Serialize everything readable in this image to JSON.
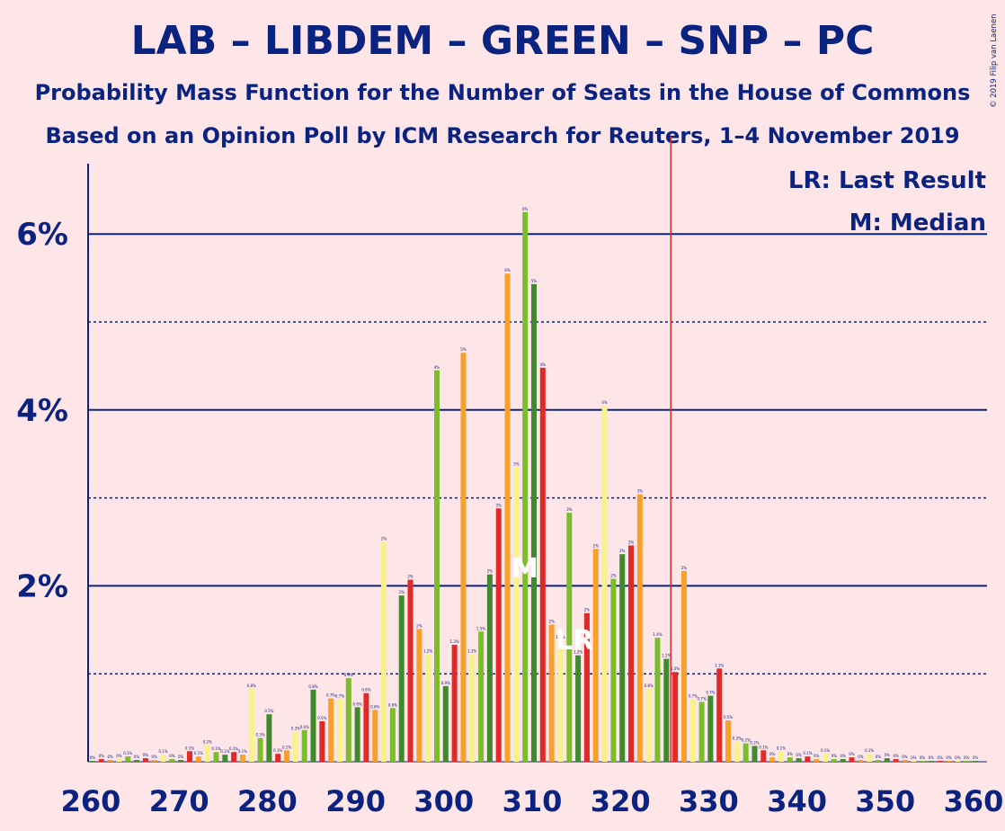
{
  "title": "LAB – LIBDEM – GREEN – SNP – PC",
  "subtitle1": "Probability Mass Function for the Number of Seats in the House of Commons",
  "subtitle2": "Based on an Opinion Poll by ICM Research for Reuters, 1–4 November 2019",
  "copyright": "© 2019 Filip van Laenen",
  "legend": {
    "last_result": "LR: Last Result",
    "median": "M: Median"
  },
  "markers": {
    "median_label": "M",
    "last_result_label": "LR"
  },
  "colors": {
    "background": "#fee5e8",
    "text": "#0b2380",
    "palette": [
      "#3f8a2e",
      "#e02a2a",
      "#f8a02c",
      "#f8f28c",
      "#7cbd2d"
    ],
    "majority_line": "#e02a2a"
  },
  "chart_data": {
    "type": "bar",
    "xlabel": "",
    "ylabel": "",
    "xlim": [
      260,
      360
    ],
    "ylim": [
      0,
      6.8
    ],
    "x_ticks": [
      260,
      270,
      280,
      290,
      300,
      310,
      320,
      330,
      340,
      350,
      360
    ],
    "y_ticks": [
      {
        "value": 2,
        "label": "2%"
      },
      {
        "value": 4,
        "label": "4%"
      },
      {
        "value": 6,
        "label": "6%"
      }
    ],
    "minor_gridlines": [
      1,
      3,
      5
    ],
    "majority_line_x": 326,
    "median_x": 310,
    "last_result_x": 315,
    "x": [
      260,
      261,
      262,
      263,
      264,
      265,
      266,
      267,
      268,
      269,
      270,
      271,
      272,
      273,
      274,
      275,
      276,
      277,
      278,
      279,
      280,
      281,
      282,
      283,
      284,
      285,
      286,
      287,
      288,
      289,
      290,
      291,
      292,
      293,
      294,
      295,
      296,
      297,
      298,
      299,
      300,
      301,
      302,
      303,
      304,
      305,
      306,
      307,
      308,
      309,
      310,
      311,
      312,
      313,
      314,
      315,
      316,
      317,
      318,
      319,
      320,
      321,
      322,
      323,
      324,
      325,
      326,
      327,
      328,
      329,
      330,
      331,
      332,
      333,
      334,
      335,
      336,
      337,
      338,
      339,
      340,
      341,
      342,
      343,
      344,
      345,
      346,
      347,
      348,
      349,
      350,
      351,
      352,
      353,
      354,
      355,
      356,
      357,
      358,
      359,
      360
    ],
    "values": [
      0.01,
      0.03,
      0.02,
      0.03,
      0.06,
      0.02,
      0.04,
      0.02,
      0.08,
      0.03,
      0.02,
      0.12,
      0.06,
      0.19,
      0.11,
      0.08,
      0.11,
      0.08,
      0.83,
      0.27,
      0.54,
      0.09,
      0.13,
      0.34,
      0.36,
      0.82,
      0.46,
      0.72,
      0.71,
      0.95,
      0.62,
      0.78,
      0.59,
      2.5,
      0.61,
      1.89,
      2.07,
      1.51,
      1.22,
      4.45,
      0.86,
      1.33,
      4.65,
      1.22,
      1.48,
      2.13,
      2.88,
      5.55,
      3.35,
      6.25,
      5.43,
      4.48,
      1.56,
      1.38,
      2.83,
      1.21,
      1.69,
      2.42,
      4.05,
      2.08,
      2.36,
      2.46,
      3.04,
      0.83,
      1.41,
      1.17,
      1.02,
      2.17,
      0.71,
      0.68,
      0.75,
      1.06,
      0.47,
      0.23,
      0.21,
      0.18,
      0.13,
      0.05,
      0.12,
      0.05,
      0.04,
      0.06,
      0.03,
      0.09,
      0.03,
      0.03,
      0.05,
      0.02,
      0.09,
      0.02,
      0.04,
      0.03,
      0.02,
      0.01,
      0.01,
      0.01,
      0.01,
      0.01,
      0.01,
      0.01,
      0.01
    ],
    "labels": [
      "0%",
      "0%",
      "0%",
      "0%",
      "0.1%",
      "0%",
      "0%",
      "0%",
      "0.1%",
      "0%",
      "0%",
      "0.1%",
      "0.1%",
      "0.2%",
      "0.1%",
      "0.1%",
      "0.1%",
      "0.1%",
      "0.8%",
      "0.3%",
      "0.5%",
      "0.1%",
      "0.1%",
      "0.3%",
      "0.4%",
      "0.8%",
      "0.5%",
      "0.7%",
      "0.7%",
      "0.9%",
      "0.6%",
      "0.8%",
      "0.6%",
      "2%",
      "0.6%",
      "2%",
      "2%",
      "2%",
      "1.2%",
      "4%",
      "0.9%",
      "1.3%",
      "5%",
      "1.2%",
      "1.5%",
      "2%",
      "3%",
      "6%",
      "3%",
      "6%",
      "5%",
      "4%",
      "2%",
      "1.4%",
      "3%",
      "1.2%",
      "2%",
      "2%",
      "4%",
      "2%",
      "2%",
      "2%",
      "3%",
      "0.8%",
      "1.4%",
      "1.2%",
      "1.0%",
      "2%",
      "0.7%",
      "0.7%",
      "0.7%",
      "1.1%",
      "0.5%",
      "0.2%",
      "0.2%",
      "0.2%",
      "0.1%",
      "0%",
      "0.1%",
      "0%",
      "0%",
      "0.1%",
      "0%",
      "0.1%",
      "0%",
      "0%",
      "0%",
      "0%",
      "0.1%",
      "0%",
      "0%",
      "0%",
      "0%",
      "0%",
      "0%",
      "0%",
      "0%",
      "0%",
      "0%",
      "0%",
      "0%"
    ]
  }
}
